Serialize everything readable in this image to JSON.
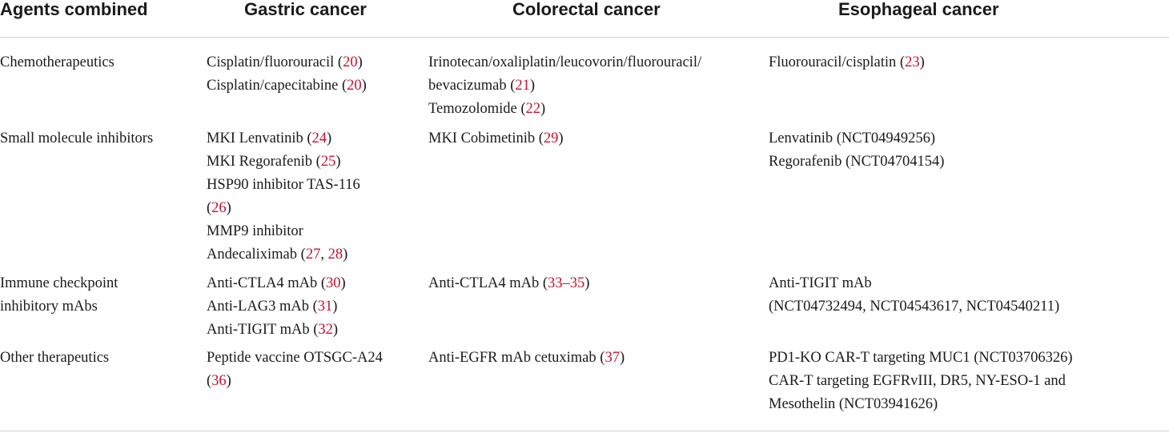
{
  "header": {
    "col1": "Agents combined",
    "col2": "Gastric cancer",
    "col3": "Colorectal cancer",
    "col4": "Esophageal cancer"
  },
  "rows": [
    {
      "agent": [
        "Chemotherapeutics"
      ],
      "gastric": [
        [
          {
            "t": "Cisplatin/fluorouracil ("
          },
          {
            "t": "20",
            "r": 1
          },
          {
            "t": ")"
          }
        ],
        [
          {
            "t": "Cisplatin/capecitabine ("
          },
          {
            "t": "20",
            "r": 1
          },
          {
            "t": ")"
          }
        ]
      ],
      "colorectal": [
        [
          {
            "t": "Irinotecan/oxaliplatin/leucovorin/fluorouracil/"
          }
        ],
        [
          {
            "t": "bevacizumab ("
          },
          {
            "t": "21",
            "r": 1
          },
          {
            "t": ")"
          }
        ],
        [
          {
            "t": "Temozolomide ("
          },
          {
            "t": "22",
            "r": 1
          },
          {
            "t": ")"
          }
        ]
      ],
      "esophageal": [
        [
          {
            "t": "Fluorouracil/cisplatin ("
          },
          {
            "t": "23",
            "r": 1
          },
          {
            "t": ")"
          }
        ]
      ]
    },
    {
      "agent": [
        "Small molecule inhibitors"
      ],
      "gastric": [
        [
          {
            "t": "MKI Lenvatinib ("
          },
          {
            "t": "24",
            "r": 1
          },
          {
            "t": ")"
          }
        ],
        [
          {
            "t": "MKI Regorafenib ("
          },
          {
            "t": "25",
            "r": 1
          },
          {
            "t": ")"
          }
        ],
        [
          {
            "t": "HSP90 inhibitor TAS-116"
          }
        ],
        [
          {
            "t": "("
          },
          {
            "t": "26",
            "r": 1
          },
          {
            "t": ")"
          }
        ],
        [
          {
            "t": "MMP9 inhibitor"
          }
        ],
        [
          {
            "t": "Andecaliximab ("
          },
          {
            "t": "27",
            "r": 1
          },
          {
            "t": ", "
          },
          {
            "t": "28",
            "r": 1
          },
          {
            "t": ")"
          }
        ]
      ],
      "colorectal": [
        [
          {
            "t": "MKI Cobimetinib ("
          },
          {
            "t": "29",
            "r": 1
          },
          {
            "t": ")"
          }
        ]
      ],
      "esophageal": [
        [
          {
            "t": "Lenvatinib (NCT04949256)"
          }
        ],
        [
          {
            "t": "Regorafenib (NCT04704154)"
          }
        ]
      ]
    },
    {
      "agent": [
        "Immune checkpoint",
        "inhibitory mAbs"
      ],
      "gastric": [
        [
          {
            "t": "Anti-CTLA4 mAb ("
          },
          {
            "t": "30",
            "r": 1
          },
          {
            "t": ")"
          }
        ],
        [
          {
            "t": "Anti-LAG3 mAb ("
          },
          {
            "t": "31",
            "r": 1
          },
          {
            "t": ")"
          }
        ],
        [
          {
            "t": "Anti-TIGIT mAb ("
          },
          {
            "t": "32",
            "r": 1
          },
          {
            "t": ")"
          }
        ]
      ],
      "colorectal": [
        [
          {
            "t": "Anti-CTLA4 mAb ("
          },
          {
            "t": "33–35",
            "r": 1
          },
          {
            "t": ")"
          }
        ]
      ],
      "esophageal": [
        [
          {
            "t": "Anti-TIGIT mAb"
          }
        ],
        [
          {
            "t": "(NCT04732494, NCT04543617, NCT04540211)"
          }
        ]
      ]
    },
    {
      "agent": [
        "Other therapeutics"
      ],
      "gastric": [
        [
          {
            "t": "Peptide vaccine OTSGC-A24"
          }
        ],
        [
          {
            "t": "("
          },
          {
            "t": "36",
            "r": 1
          },
          {
            "t": ")"
          }
        ]
      ],
      "colorectal": [
        [
          {
            "t": "Anti-EGFR mAb cetuximab ("
          },
          {
            "t": "37",
            "r": 1
          },
          {
            "t": ")"
          }
        ]
      ],
      "esophageal": [
        [
          {
            "t": "PD1-KO CAR-T targeting MUC1 (NCT03706326)"
          }
        ],
        [
          {
            "t": "CAR-T targeting EGFRvIII, DR5, NY-ESO-1 and"
          }
        ],
        [
          {
            "t": "Mesothelin (NCT03941626)"
          }
        ]
      ]
    }
  ],
  "colors": {
    "reference": "#c8102e",
    "rule": "#cfcfcf",
    "text": "#1a1a1a"
  }
}
